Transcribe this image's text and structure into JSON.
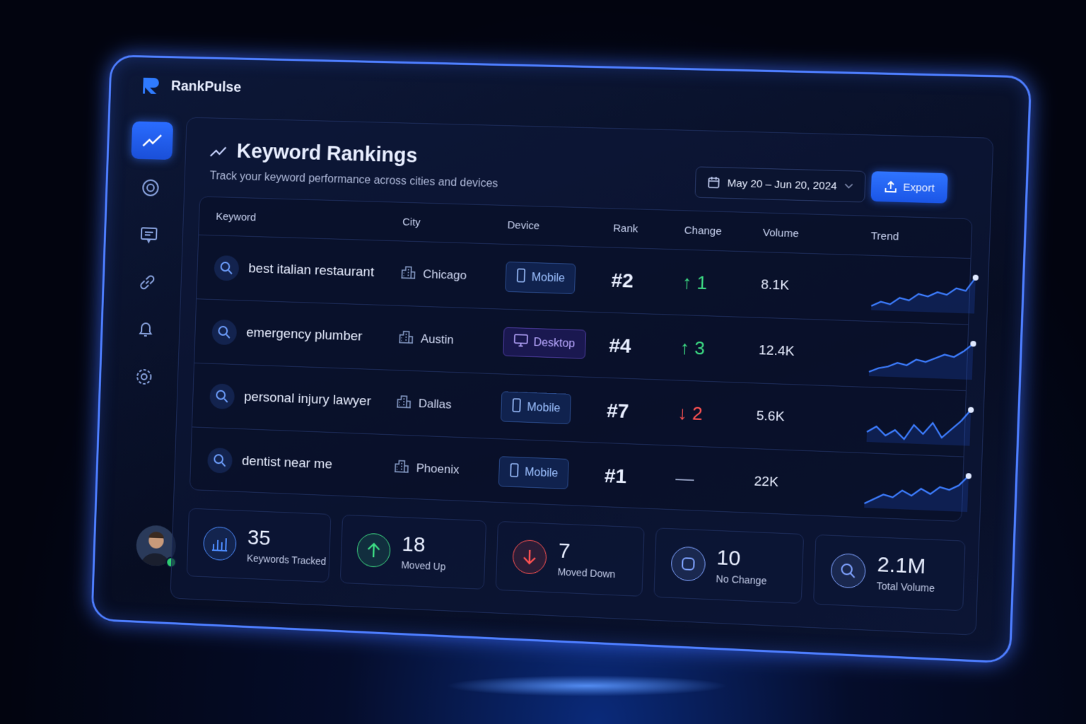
{
  "app": {
    "name": "RankPulse"
  },
  "header": {
    "title": "Keyword Rankings",
    "subtitle": "Track your keyword performance across cities and devices",
    "date_range": "May 20 – Jun 20, 2024",
    "export": "Export"
  },
  "table": {
    "columns": [
      "Keyword",
      "City",
      "Device",
      "Rank",
      "Change",
      "Volume",
      "Trend"
    ],
    "rows": [
      {
        "keyword": "best italian restaurant",
        "city": "Chicago",
        "device": "Mobile",
        "rank": "#2",
        "change": "↑ 1",
        "change_color": "#3ddc84",
        "volume": "8.1K",
        "trend": [
          2,
          3,
          2.5,
          4,
          3.5,
          5,
          4.5,
          5.5,
          5,
          6.5,
          6,
          9
        ]
      },
      {
        "keyword": "emergency plumber",
        "city": "Austin",
        "device": "Desktop",
        "rank": "#4",
        "change": "↑ 3",
        "change_color": "#3ddc84",
        "volume": "12.4K",
        "trend": [
          1,
          2,
          2.5,
          3.5,
          3,
          4.5,
          4,
          5,
          6,
          5.5,
          7,
          9
        ]
      },
      {
        "keyword": "personal injury lawyer",
        "city": "Dallas",
        "device": "Mobile",
        "rank": "#7",
        "change": "↓ 2",
        "change_color": "#ff5252",
        "volume": "5.6K",
        "trend": [
          4,
          5,
          3.5,
          4.5,
          3,
          5.5,
          4,
          6,
          3.5,
          5,
          6.5,
          8.5
        ]
      },
      {
        "keyword": "dentist near me",
        "city": "Phoenix",
        "device": "Mobile",
        "rank": "#1",
        "change": "—",
        "change_color": "#9aa6c8",
        "volume": "22K",
        "trend": [
          2,
          3,
          4,
          3.5,
          5,
          4,
          5.5,
          4.5,
          6,
          5.5,
          6.5,
          8.5
        ]
      }
    ]
  },
  "stats": [
    {
      "value": "35",
      "label": "Keywords Tracked",
      "color": "#4d8cff"
    },
    {
      "value": "18",
      "label": "Moved Up",
      "color": "#3ddc84"
    },
    {
      "value": "7",
      "label": "Moved Down",
      "color": "#ff5252"
    },
    {
      "value": "10",
      "label": "No Change",
      "color": "#7fa2ff"
    },
    {
      "value": "2.1M",
      "label": "Total Volume",
      "color": "#7fa2ff"
    }
  ]
}
